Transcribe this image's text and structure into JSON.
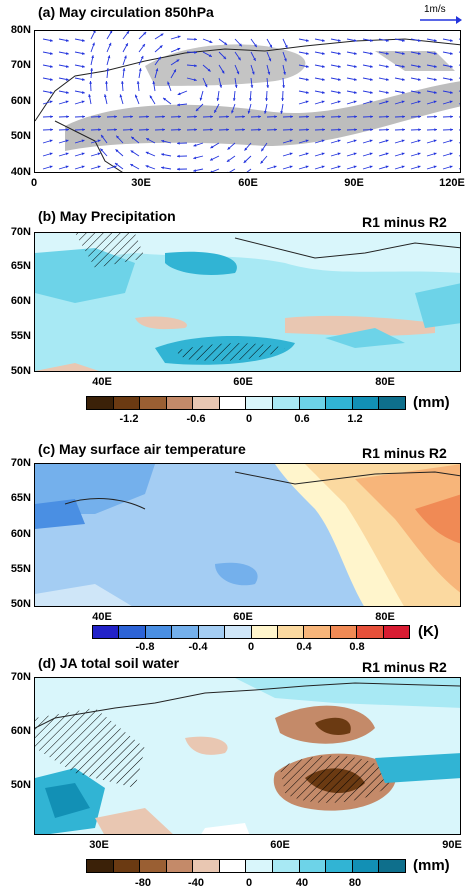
{
  "panel_a": {
    "title": "(a) May circulation 850hPa",
    "ref_vector_label": "1m/s",
    "y_ticks": [
      "80N",
      "70N",
      "60N",
      "50N",
      "40N"
    ],
    "x_ticks": [
      "0",
      "30E",
      "60E",
      "90E",
      "120E"
    ]
  },
  "panel_b": {
    "title": "(b) May Precipitation",
    "right_label": "R1 minus R2",
    "y_ticks": [
      "70N",
      "65N",
      "60N",
      "55N",
      "50N"
    ],
    "x_ticks": [
      "40E",
      "60E",
      "80E"
    ],
    "colorbar_labels": [
      "-1.2",
      "-0.6",
      "0",
      "0.6",
      "1.2"
    ],
    "unit": "(mm)",
    "colors": [
      "#3b2108",
      "#6b3a12",
      "#9a5f33",
      "#c48a69",
      "#e9c7b2",
      "#ffffff",
      "#d9f6fb",
      "#a8e9f4",
      "#6dd3e8",
      "#31b4d4",
      "#1290b5",
      "#0e6f8c"
    ]
  },
  "panel_c": {
    "title": "(c) May surface air temperature",
    "right_label": "R1 minus R2",
    "y_ticks": [
      "70N",
      "65N",
      "60N",
      "55N",
      "50N"
    ],
    "x_ticks": [
      "40E",
      "60E",
      "80E"
    ],
    "colorbar_labels": [
      "-0.8",
      "-0.4",
      "0",
      "0.4",
      "0.8"
    ],
    "unit": "(K)",
    "colors": [
      "#2222c8",
      "#2c63d6",
      "#4a8fe3",
      "#74b0ec",
      "#a4cdf3",
      "#cfe6f8",
      "#fff5cc",
      "#fbd9a0",
      "#f7b57a",
      "#f08a55",
      "#e6503a",
      "#d81c32"
    ]
  },
  "panel_d": {
    "title": "(d) JA total soil water",
    "right_label": "R1 minus R2",
    "y_ticks": [
      "70N",
      "60N",
      "50N"
    ],
    "x_ticks": [
      "30E",
      "60E",
      "90E"
    ],
    "colorbar_labels": [
      "-80",
      "-40",
      "0",
      "40",
      "80"
    ],
    "unit": "(mm)",
    "colors": [
      "#3b2108",
      "#6b3a12",
      "#9a5f33",
      "#c48a69",
      "#e9c7b2",
      "#ffffff",
      "#d9f6fb",
      "#a8e9f4",
      "#6dd3e8",
      "#31b4d4",
      "#1290b5",
      "#0e6f8c"
    ]
  }
}
